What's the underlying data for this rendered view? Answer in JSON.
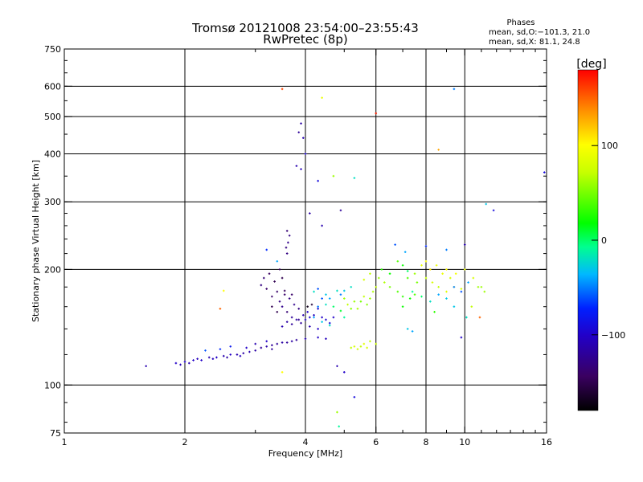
{
  "header": {
    "title_line1": "Tromsø 20121008 23:54:00–23:55:43",
    "title_line2": "RwPretec (8p)",
    "phases_label": "Phases",
    "mean_o": "mean, sd,O:−101.3, 21.0",
    "mean_x": "mean, sd,X:  81.1, 24.8"
  },
  "colorbar": {
    "unit_label": "[deg]",
    "range": [
      -180,
      180
    ],
    "ticks": [
      {
        "value": 100,
        "label": "100"
      },
      {
        "value": 0,
        "label": "0"
      },
      {
        "value": -100,
        "label": "−100"
      }
    ]
  },
  "chart_data": {
    "type": "scatter",
    "xlabel": "Frequency [MHz]",
    "ylabel": "Stationary phase Virtual Height [km]",
    "x_scale": "log",
    "y_scale": "log",
    "xlim": [
      1,
      16
    ],
    "ylim": [
      75,
      750
    ],
    "grid": true,
    "x_ticks": [
      {
        "value": 1,
        "label": "1"
      },
      {
        "value": 2,
        "label": "2"
      },
      {
        "value": 4,
        "label": "4"
      },
      {
        "value": 6,
        "label": "6"
      },
      {
        "value": 8,
        "label": "8"
      },
      {
        "value": 10,
        "label": "10"
      },
      {
        "value": 16,
        "label": "16"
      }
    ],
    "x_gridlines": [
      2,
      4,
      6,
      8,
      10
    ],
    "y_ticks": [
      {
        "value": 75,
        "label": "75"
      },
      {
        "value": 100,
        "label": "100"
      },
      {
        "value": 200,
        "label": "200"
      },
      {
        "value": 300,
        "label": "300"
      },
      {
        "value": 400,
        "label": "400"
      },
      {
        "value": 500,
        "label": "500"
      },
      {
        "value": 600,
        "label": "600"
      },
      {
        "value": 750,
        "label": "750"
      }
    ],
    "y_gridlines": [
      100,
      200,
      300,
      400,
      500,
      600
    ],
    "points": [
      [
        1.6,
        112,
        -110
      ],
      [
        1.9,
        114,
        -100
      ],
      [
        1.95,
        113,
        -105
      ],
      [
        2.0,
        115,
        -100
      ],
      [
        2.05,
        114,
        -110
      ],
      [
        2.1,
        116,
        -100
      ],
      [
        2.15,
        117,
        -105
      ],
      [
        2.2,
        116,
        -100
      ],
      [
        2.3,
        118,
        -110
      ],
      [
        2.35,
        117,
        -105
      ],
      [
        2.4,
        118,
        -100
      ],
      [
        2.5,
        119,
        -110
      ],
      [
        2.55,
        118,
        -115
      ],
      [
        2.6,
        120,
        -100
      ],
      [
        2.7,
        120,
        -110
      ],
      [
        2.75,
        119,
        -105
      ],
      [
        2.8,
        121,
        -115
      ],
      [
        2.9,
        122,
        -110
      ],
      [
        3.0,
        123,
        -115
      ],
      [
        3.1,
        125,
        -120
      ],
      [
        3.2,
        126,
        -115
      ],
      [
        3.3,
        127,
        -120
      ],
      [
        3.4,
        128,
        -120
      ],
      [
        3.5,
        129,
        -115
      ],
      [
        3.6,
        129,
        -120
      ],
      [
        3.7,
        130,
        -115
      ],
      [
        3.8,
        131,
        -120
      ],
      [
        4.0,
        132,
        -110
      ],
      [
        4.3,
        133,
        -100
      ],
      [
        4.5,
        132,
        -105
      ],
      [
        2.25,
        123,
        -60
      ],
      [
        2.45,
        124,
        -70
      ],
      [
        2.6,
        126,
        -80
      ],
      [
        2.85,
        125,
        -100
      ],
      [
        3.0,
        128,
        -110
      ],
      [
        3.2,
        130,
        -100
      ],
      [
        3.3,
        124,
        -120
      ],
      [
        3.1,
        182,
        -130
      ],
      [
        3.15,
        190,
        -135
      ],
      [
        3.2,
        178,
        -140
      ],
      [
        3.25,
        195,
        -145
      ],
      [
        3.3,
        170,
        -140
      ],
      [
        3.35,
        186,
        -150
      ],
      [
        3.4,
        175,
        -140
      ],
      [
        3.45,
        165,
        -130
      ],
      [
        3.5,
        160,
        -125
      ],
      [
        3.55,
        172,
        -140
      ],
      [
        3.6,
        155,
        -135
      ],
      [
        3.65,
        168,
        -130
      ],
      [
        3.7,
        150,
        -120
      ],
      [
        3.75,
        162,
        -125
      ],
      [
        3.8,
        148,
        -115
      ],
      [
        3.85,
        158,
        -130
      ],
      [
        3.9,
        145,
        -120
      ],
      [
        3.95,
        152,
        -110
      ],
      [
        4.0,
        148,
        -100
      ],
      [
        4.05,
        155,
        -100
      ],
      [
        4.1,
        150,
        -95
      ],
      [
        4.2,
        152,
        -105
      ],
      [
        4.3,
        158,
        -95
      ],
      [
        4.4,
        150,
        -100
      ],
      [
        4.5,
        148,
        -95
      ],
      [
        4.6,
        145,
        -90
      ],
      [
        4.7,
        150,
        -100
      ],
      [
        3.5,
        142,
        -110
      ],
      [
        3.6,
        146,
        -115
      ],
      [
        3.7,
        144,
        -120
      ],
      [
        3.85,
        148,
        -125
      ],
      [
        4.1,
        142,
        -110
      ],
      [
        4.3,
        140,
        -100
      ],
      [
        3.3,
        160,
        -150
      ],
      [
        3.4,
        155,
        -150
      ],
      [
        3.55,
        176,
        -145
      ],
      [
        3.7,
        172,
        -140
      ],
      [
        3.45,
        200,
        -145
      ],
      [
        3.5,
        190,
        -150
      ],
      [
        3.6,
        220,
        -130
      ],
      [
        3.62,
        235,
        -125
      ],
      [
        3.65,
        245,
        -130
      ],
      [
        3.6,
        252,
        -135
      ],
      [
        3.58,
        228,
        -130
      ],
      [
        3.9,
        480,
        -115
      ],
      [
        3.95,
        440,
        -110
      ],
      [
        4.0,
        400,
        -95
      ],
      [
        3.85,
        455,
        -120
      ],
      [
        3.8,
        372,
        -110
      ],
      [
        3.9,
        365,
        -105
      ],
      [
        4.3,
        340,
        -90
      ],
      [
        4.9,
        285,
        -120
      ],
      [
        4.4,
        260,
        -110
      ],
      [
        4.1,
        280,
        -115
      ],
      [
        3.5,
        590,
        160
      ],
      [
        4.4,
        560,
        90
      ],
      [
        6.0,
        510,
        170
      ],
      [
        8.6,
        410,
        130
      ],
      [
        9.4,
        590,
        -50
      ],
      [
        5.3,
        346,
        -20
      ],
      [
        4.7,
        350,
        60
      ],
      [
        4.4,
        168,
        -60
      ],
      [
        4.5,
        172,
        -30
      ],
      [
        4.6,
        168,
        -40
      ],
      [
        4.8,
        176,
        -20
      ],
      [
        4.9,
        172,
        -50
      ],
      [
        5.0,
        176,
        -30
      ],
      [
        5.2,
        180,
        -20
      ],
      [
        4.3,
        160,
        -50
      ],
      [
        4.5,
        162,
        -20
      ],
      [
        4.7,
        160,
        0
      ],
      [
        4.9,
        156,
        10
      ],
      [
        5.0,
        150,
        -10
      ],
      [
        4.2,
        150,
        -40
      ],
      [
        4.4,
        146,
        -30
      ],
      [
        4.6,
        143,
        -20
      ],
      [
        5.0,
        168,
        60
      ],
      [
        5.1,
        162,
        70
      ],
      [
        5.2,
        158,
        55
      ],
      [
        5.3,
        165,
        60
      ],
      [
        5.4,
        158,
        65
      ],
      [
        5.5,
        165,
        50
      ],
      [
        5.6,
        170,
        70
      ],
      [
        5.7,
        162,
        55
      ],
      [
        5.8,
        168,
        60
      ],
      [
        5.9,
        175,
        65
      ],
      [
        6.0,
        180,
        70
      ],
      [
        5.6,
        188,
        80
      ],
      [
        5.8,
        195,
        70
      ],
      [
        6.1,
        190,
        60
      ],
      [
        6.3,
        185,
        65
      ],
      [
        6.5,
        180,
        50
      ],
      [
        6.8,
        175,
        40
      ],
      [
        7.0,
        170,
        30
      ],
      [
        7.3,
        168,
        20
      ],
      [
        7.5,
        172,
        40
      ],
      [
        5.2,
        125,
        70
      ],
      [
        5.3,
        126,
        80
      ],
      [
        5.4,
        124,
        75
      ],
      [
        5.5,
        126,
        70
      ],
      [
        5.6,
        128,
        85
      ],
      [
        5.7,
        125,
        80
      ],
      [
        5.8,
        130,
        70
      ],
      [
        6.0,
        128,
        75
      ],
      [
        6.2,
        200,
        30
      ],
      [
        6.5,
        195,
        20
      ],
      [
        6.8,
        210,
        40
      ],
      [
        7.0,
        205,
        20
      ],
      [
        7.2,
        198,
        0
      ],
      [
        7.5,
        195,
        60
      ],
      [
        7.8,
        205,
        90
      ],
      [
        8.0,
        210,
        100
      ],
      [
        8.2,
        200,
        110
      ],
      [
        8.5,
        205,
        90
      ],
      [
        8.8,
        195,
        90
      ],
      [
        9.0,
        200,
        100
      ],
      [
        9.2,
        190,
        80
      ],
      [
        9.5,
        195,
        95
      ],
      [
        10.0,
        200,
        90
      ],
      [
        10.5,
        190,
        80
      ],
      [
        11.0,
        180,
        60
      ],
      [
        8.3,
        185,
        80
      ],
      [
        8.6,
        180,
        70
      ],
      [
        9.0,
        175,
        85
      ],
      [
        9.4,
        180,
        90
      ],
      [
        9.8,
        178,
        80
      ],
      [
        8.0,
        190,
        70
      ],
      [
        7.6,
        185,
        50
      ],
      [
        7.2,
        190,
        40
      ],
      [
        7.0,
        160,
        20
      ],
      [
        7.4,
        175,
        -10
      ],
      [
        7.8,
        170,
        0
      ],
      [
        8.2,
        165,
        -20
      ],
      [
        8.6,
        172,
        -40
      ],
      [
        9.0,
        168,
        -30
      ],
      [
        9.4,
        180,
        -50
      ],
      [
        9.8,
        175,
        -60
      ],
      [
        10.2,
        185,
        -40
      ],
      [
        6.7,
        232,
        -60
      ],
      [
        7.1,
        222,
        -40
      ],
      [
        8.0,
        230,
        -70
      ],
      [
        9.0,
        225,
        -50
      ],
      [
        10.0,
        232,
        -110
      ],
      [
        8.4,
        155,
        30
      ],
      [
        9.4,
        160,
        -30
      ],
      [
        10.1,
        150,
        -20
      ],
      [
        10.4,
        160,
        70
      ],
      [
        10.8,
        180,
        60
      ],
      [
        11.2,
        175,
        60
      ],
      [
        10.9,
        150,
        150
      ],
      [
        9.8,
        133,
        -100
      ],
      [
        7.2,
        140,
        -30
      ],
      [
        7.4,
        138,
        -40
      ],
      [
        11.8,
        285,
        -90
      ],
      [
        11.3,
        296,
        -30
      ],
      [
        15.8,
        358,
        -90
      ],
      [
        4.8,
        112,
        -110
      ],
      [
        5.0,
        108,
        -100
      ],
      [
        3.5,
        108,
        100
      ],
      [
        2.5,
        176,
        100
      ],
      [
        2.45,
        158,
        150
      ],
      [
        3.4,
        210,
        -40
      ],
      [
        3.2,
        225,
        -70
      ],
      [
        5.3,
        93,
        -90
      ],
      [
        4.8,
        85,
        60
      ],
      [
        4.85,
        78,
        -10
      ],
      [
        4.05,
        160,
        -170
      ],
      [
        4.15,
        162,
        -160
      ],
      [
        4.2,
        175,
        -20
      ],
      [
        4.3,
        178,
        -60
      ]
    ]
  }
}
